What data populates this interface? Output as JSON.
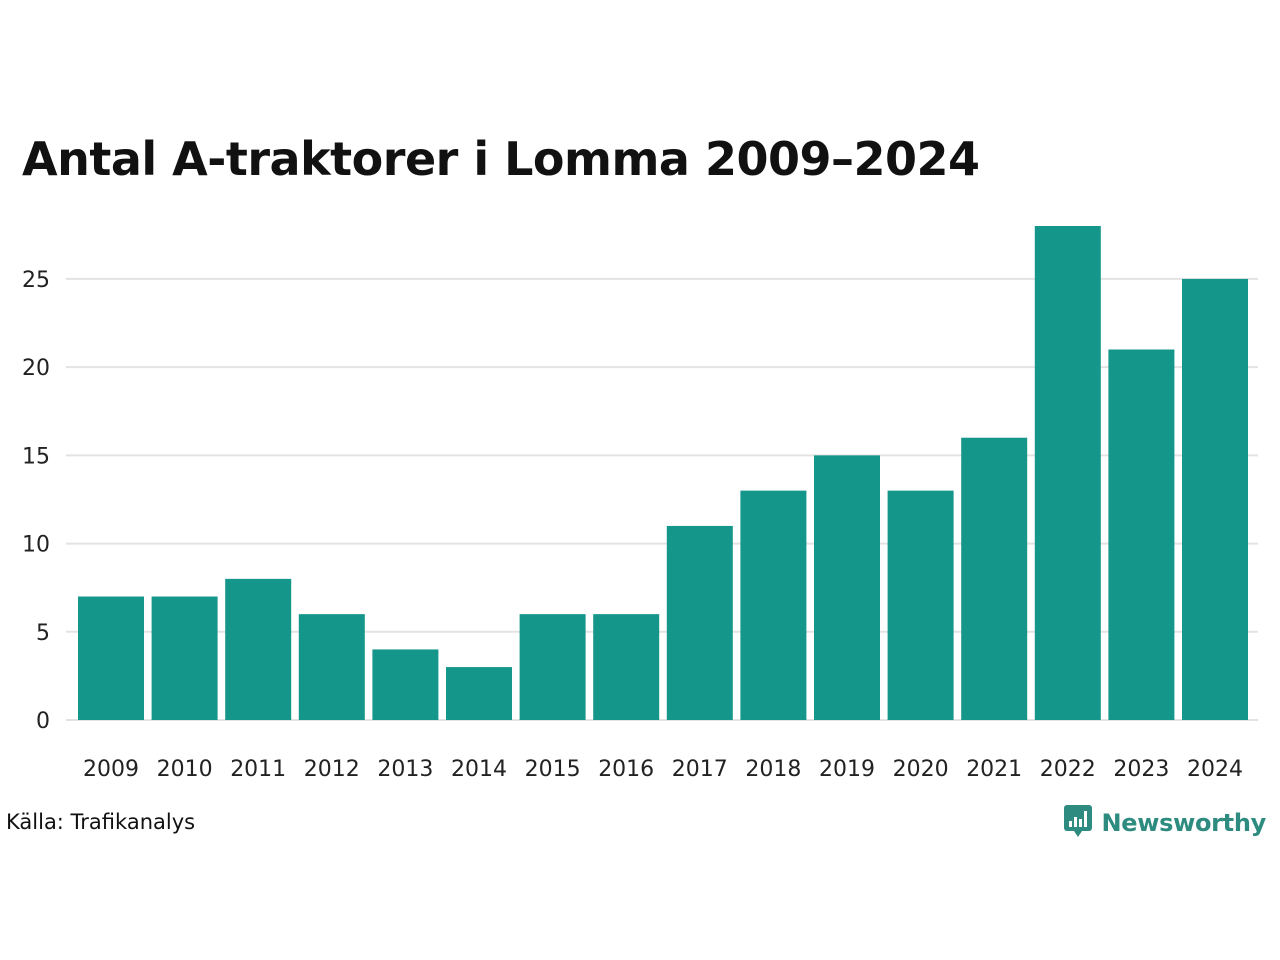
{
  "accent_color": "#14978a",
  "chart_data": {
    "type": "bar",
    "title": "Antal A-traktorer i Lomma 2009–2024",
    "categories": [
      "2009",
      "2010",
      "2011",
      "2012",
      "2013",
      "2014",
      "2015",
      "2016",
      "2017",
      "2018",
      "2019",
      "2020",
      "2021",
      "2022",
      "2023",
      "2024"
    ],
    "values": [
      7,
      7,
      8,
      6,
      4,
      3,
      6,
      6,
      11,
      13,
      15,
      13,
      16,
      28,
      21,
      25
    ],
    "yticks": [
      0,
      5,
      10,
      15,
      20,
      25
    ],
    "ylim": [
      0,
      28
    ],
    "grid": true,
    "legend": "none",
    "source": "Källa: Trafikanalys"
  },
  "brand": {
    "name": "Newsworthy",
    "icon": "newsworthy-logo-icon"
  }
}
